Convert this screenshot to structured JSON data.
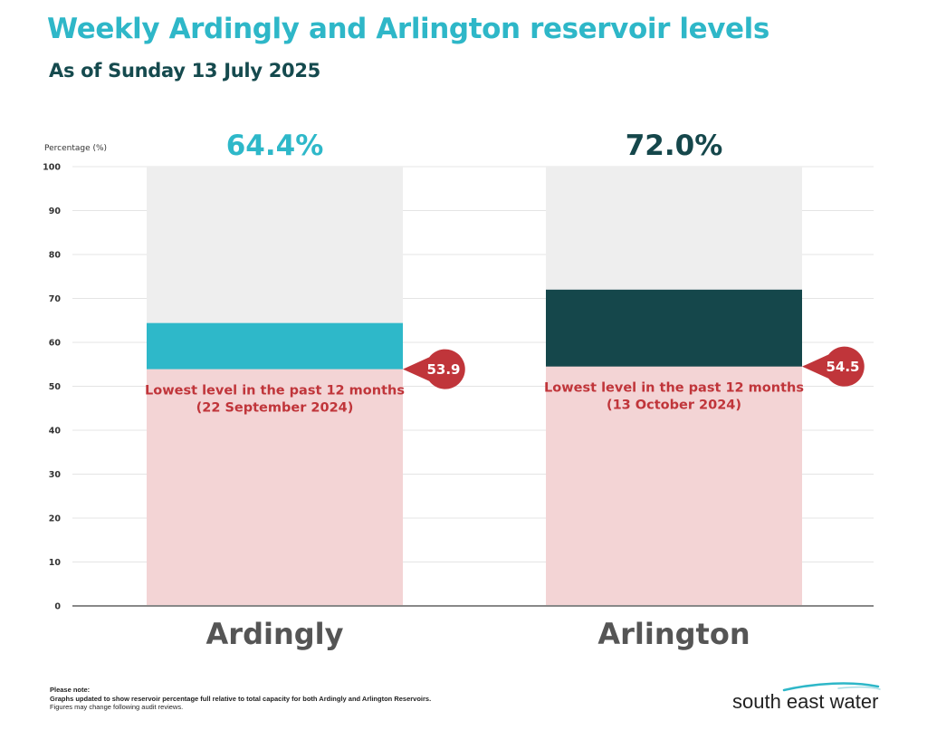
{
  "header": {
    "title": "Weekly Ardingly and Arlington reservoir levels",
    "subtitle": "As of Sunday 13 July 2025"
  },
  "colors": {
    "title": "#2eb7c8",
    "subtitle": "#154a4e",
    "ardingly": "#2eb8c9",
    "arlington": "#15474b",
    "capacity": "#eeeeee",
    "lowest_fill": "#f3d4d5",
    "lowest_text": "#c0353a",
    "marker": "#c0353a",
    "grid": "#e4e4e4",
    "axis": "#888888"
  },
  "chart_data": {
    "type": "bar",
    "ylabel": "Percentage (%)",
    "ylim": [
      0,
      100
    ],
    "yticks": [
      0,
      10,
      20,
      30,
      40,
      50,
      60,
      70,
      80,
      90,
      100
    ],
    "categories": [
      "Ardingly",
      "Arlington"
    ],
    "values": [
      64.4,
      72.0
    ],
    "value_labels": [
      "64.4%",
      "72.0%"
    ],
    "lowest_level": [
      {
        "value": 53.9,
        "label": "53.9",
        "text_line1": "Lowest level in the past 12 months",
        "text_line2": "(22 September 2024)"
      },
      {
        "value": 54.5,
        "label": "54.5",
        "text_line1": "Lowest level in the past 12 months",
        "text_line2": "(13 October 2024)"
      }
    ],
    "grid": true
  },
  "footer": {
    "note_title": "Please note:",
    "note_line1": "Graphs updated to show reservoir percentage full relative to total capacity for both Ardingly and Arlington Reservoirs.",
    "note_line2": "Figures may change following audit reviews.",
    "logo_text": "south east water"
  }
}
